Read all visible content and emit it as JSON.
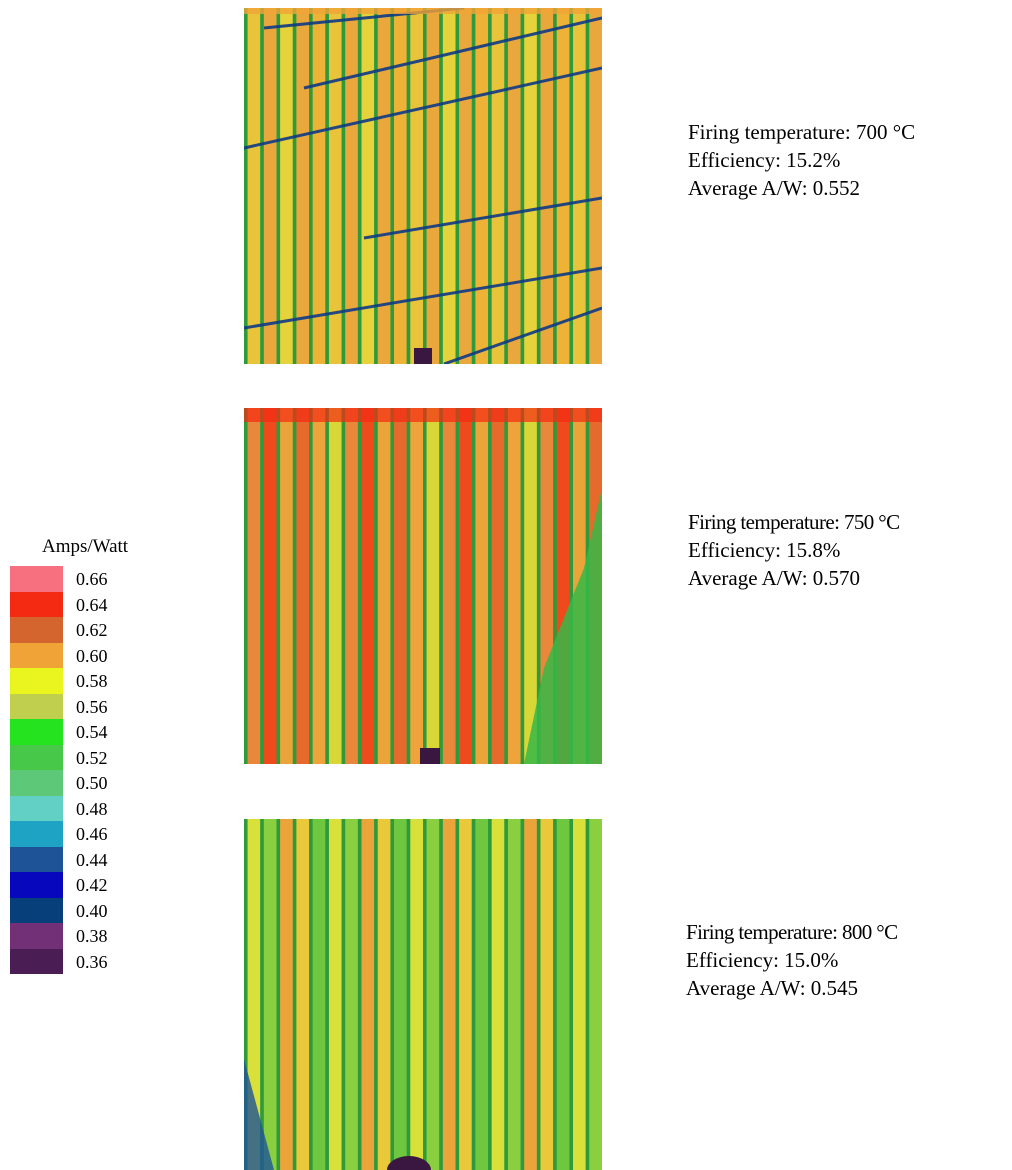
{
  "legend": {
    "title": "Amps/Watt",
    "items": [
      {
        "value": "0.66",
        "color": "#f7707f"
      },
      {
        "value": "0.64",
        "color": "#f52a12"
      },
      {
        "value": "0.62",
        "color": "#d4652f"
      },
      {
        "value": "0.60",
        "color": "#f0a437"
      },
      {
        "value": "0.58",
        "color": "#eaf520"
      },
      {
        "value": "0.56",
        "color": "#c0d04e"
      },
      {
        "value": "0.54",
        "color": "#26e320"
      },
      {
        "value": "0.52",
        "color": "#47c848"
      },
      {
        "value": "0.50",
        "color": "#5dc877"
      },
      {
        "value": "0.48",
        "color": "#63d0c5"
      },
      {
        "value": "0.46",
        "color": "#1fa3c5"
      },
      {
        "value": "0.44",
        "color": "#1e5497"
      },
      {
        "value": "0.42",
        "color": "#0707bd"
      },
      {
        "value": "0.40",
        "color": "#073f7b"
      },
      {
        "value": "0.38",
        "color": "#723177"
      },
      {
        "value": "0.36",
        "color": "#4a1d54"
      }
    ]
  },
  "panels": [
    {
      "temperature_line": "Firing temperature: 700 °C",
      "efficiency_line": "Efficiency: 15.2%",
      "average_line": "Average A/W: 0.552"
    },
    {
      "temperature_line": "Firing temperature: 750 °C",
      "efficiency_line": "Efficiency: 15.8%",
      "average_line": "Average A/W: 0.570"
    },
    {
      "temperature_line": "Firing temperature: 800 °C",
      "efficiency_line": "Efficiency: 15.0%",
      "average_line": "Average A/W: 0.545"
    }
  ]
}
